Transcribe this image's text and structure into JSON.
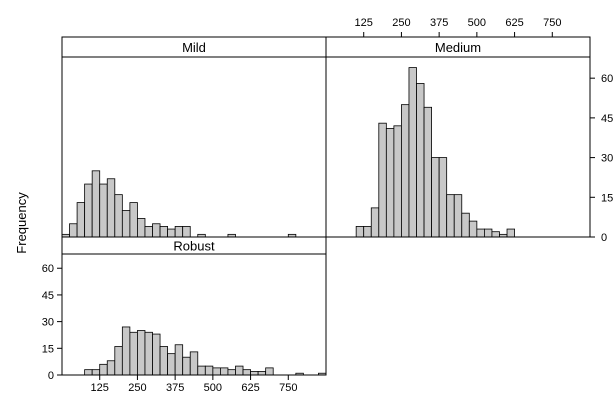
{
  "chart_data": {
    "type": "bar",
    "layout": "lattice 2x2 histogram panels",
    "ylabel": "Frequency",
    "xlabel": "",
    "x_ticks": [
      "125",
      "250",
      "375",
      "500",
      "625",
      "750"
    ],
    "y_ticks": [
      "0",
      "15",
      "30",
      "45",
      "60"
    ],
    "ylim": [
      0,
      68
    ],
    "xlim": [
      0,
      875
    ],
    "bin_width": 25,
    "bar_fill": "#c8c8c8",
    "strip_fill": "#ffffff",
    "panels": [
      {
        "name": "Mild",
        "bin_starts": [
          0,
          25,
          50,
          75,
          100,
          125,
          150,
          175,
          200,
          225,
          250,
          275,
          300,
          325,
          350,
          375,
          400,
          425,
          450,
          475,
          500,
          525,
          550,
          575,
          600,
          625,
          650,
          675,
          700,
          725,
          750,
          775,
          800,
          825,
          850
        ],
        "values": [
          1,
          5,
          13,
          20,
          25,
          20,
          22,
          16,
          10,
          13,
          7,
          4,
          5,
          4,
          3,
          4,
          4,
          0,
          1,
          0,
          0,
          0,
          1,
          0,
          0,
          0,
          0,
          0,
          0,
          0,
          1,
          0,
          0,
          0,
          0
        ]
      },
      {
        "name": "Medium",
        "bin_starts": [
          0,
          25,
          50,
          75,
          100,
          125,
          150,
          175,
          200,
          225,
          250,
          275,
          300,
          325,
          350,
          375,
          400,
          425,
          450,
          475,
          500,
          525,
          550,
          575,
          600,
          625,
          650,
          675,
          700,
          725,
          750,
          775,
          800,
          825,
          850
        ],
        "values": [
          0,
          0,
          0,
          0,
          4,
          4,
          11,
          43,
          41,
          42,
          50,
          64,
          58,
          49,
          30,
          30,
          16,
          16,
          9,
          6,
          3,
          3,
          2,
          1,
          3,
          0,
          0,
          0,
          0,
          0,
          0,
          0,
          0,
          0,
          0
        ]
      },
      {
        "name": "Robust",
        "bin_starts": [
          0,
          25,
          50,
          75,
          100,
          125,
          150,
          175,
          200,
          225,
          250,
          275,
          300,
          325,
          350,
          375,
          400,
          425,
          450,
          475,
          500,
          525,
          550,
          575,
          600,
          625,
          650,
          675,
          700,
          725,
          750,
          775,
          800,
          825,
          850
        ],
        "values": [
          0,
          0,
          0,
          3,
          3,
          6,
          8,
          16,
          27,
          24,
          25,
          24,
          23,
          16,
          12,
          17,
          10,
          13,
          5,
          5,
          4,
          4,
          3,
          5,
          3,
          2,
          2,
          4,
          0,
          0,
          0,
          1,
          0,
          0,
          1
        ]
      }
    ]
  }
}
